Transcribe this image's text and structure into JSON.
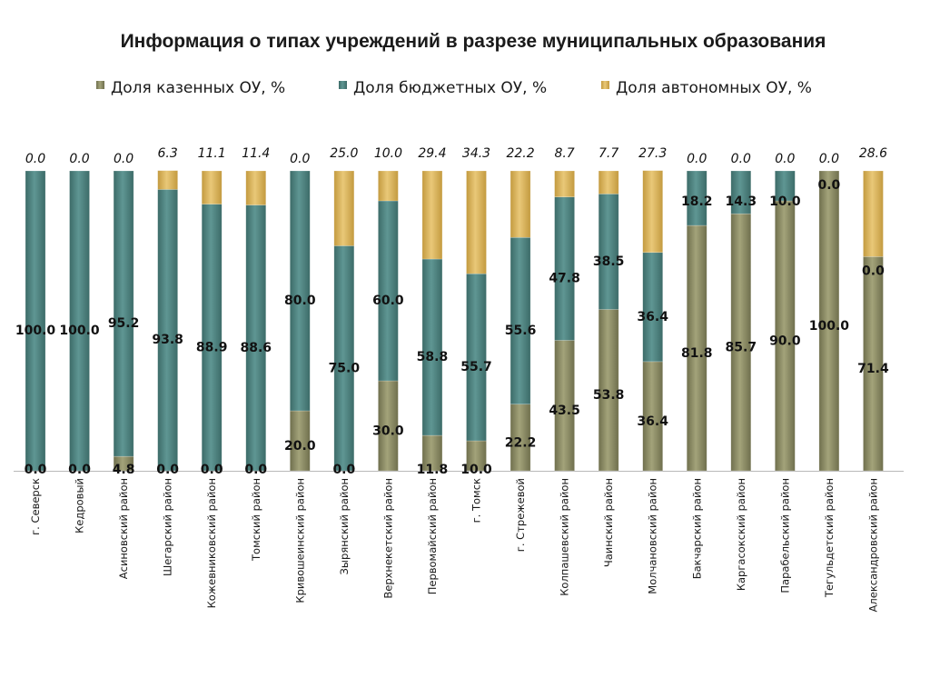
{
  "chart_data": {
    "type": "bar",
    "stacked": true,
    "title": "Информация о типах учреждений в разрезе муниципальных образования",
    "xlabel": "",
    "ylabel": "",
    "ylim": [
      0,
      100
    ],
    "grid": false,
    "legend_position": "top",
    "categories": [
      "г. Северск",
      "Кедровый",
      "Асиновский район",
      "Шегарский район",
      "Кожевниковский район",
      "Томский район",
      "Кривошеинский район",
      "Зырянский район",
      "Верхнекетский район",
      "Первомайский район",
      "г. Томск",
      "г. Стрежевой",
      "Колпашевский район",
      "Чаинский район",
      "Молчановский район",
      "Бакчарский район",
      "Каргасокский район",
      "Парабельский район",
      "Тегульдетский район",
      "Александровский район"
    ],
    "series": [
      {
        "name": "Доля казенных ОУ,  %",
        "color": "#8a8a64",
        "values": [
          0.0,
          0.0,
          4.8,
          0.0,
          0.0,
          0.0,
          20.0,
          0.0,
          30.0,
          11.8,
          10.0,
          22.2,
          43.5,
          53.8,
          36.4,
          81.8,
          85.7,
          90.0,
          100.0,
          71.4
        ]
      },
      {
        "name": "Доля бюджетных ОУ,  %",
        "color": "#4f8481",
        "values": [
          100.0,
          100.0,
          95.2,
          93.8,
          88.9,
          88.6,
          80.0,
          75.0,
          60.0,
          58.8,
          55.7,
          55.6,
          47.8,
          38.5,
          36.4,
          18.2,
          14.3,
          10.0,
          0.0,
          0.0
        ]
      },
      {
        "name": "Доля автономных ОУ,  %",
        "color": "#d8b25a",
        "values": [
          0.0,
          0.0,
          0.0,
          6.3,
          11.1,
          11.4,
          0.0,
          25.0,
          10.0,
          29.4,
          34.3,
          22.2,
          8.7,
          7.7,
          27.3,
          0.0,
          0.0,
          0.0,
          0.0,
          28.6
        ]
      }
    ]
  }
}
